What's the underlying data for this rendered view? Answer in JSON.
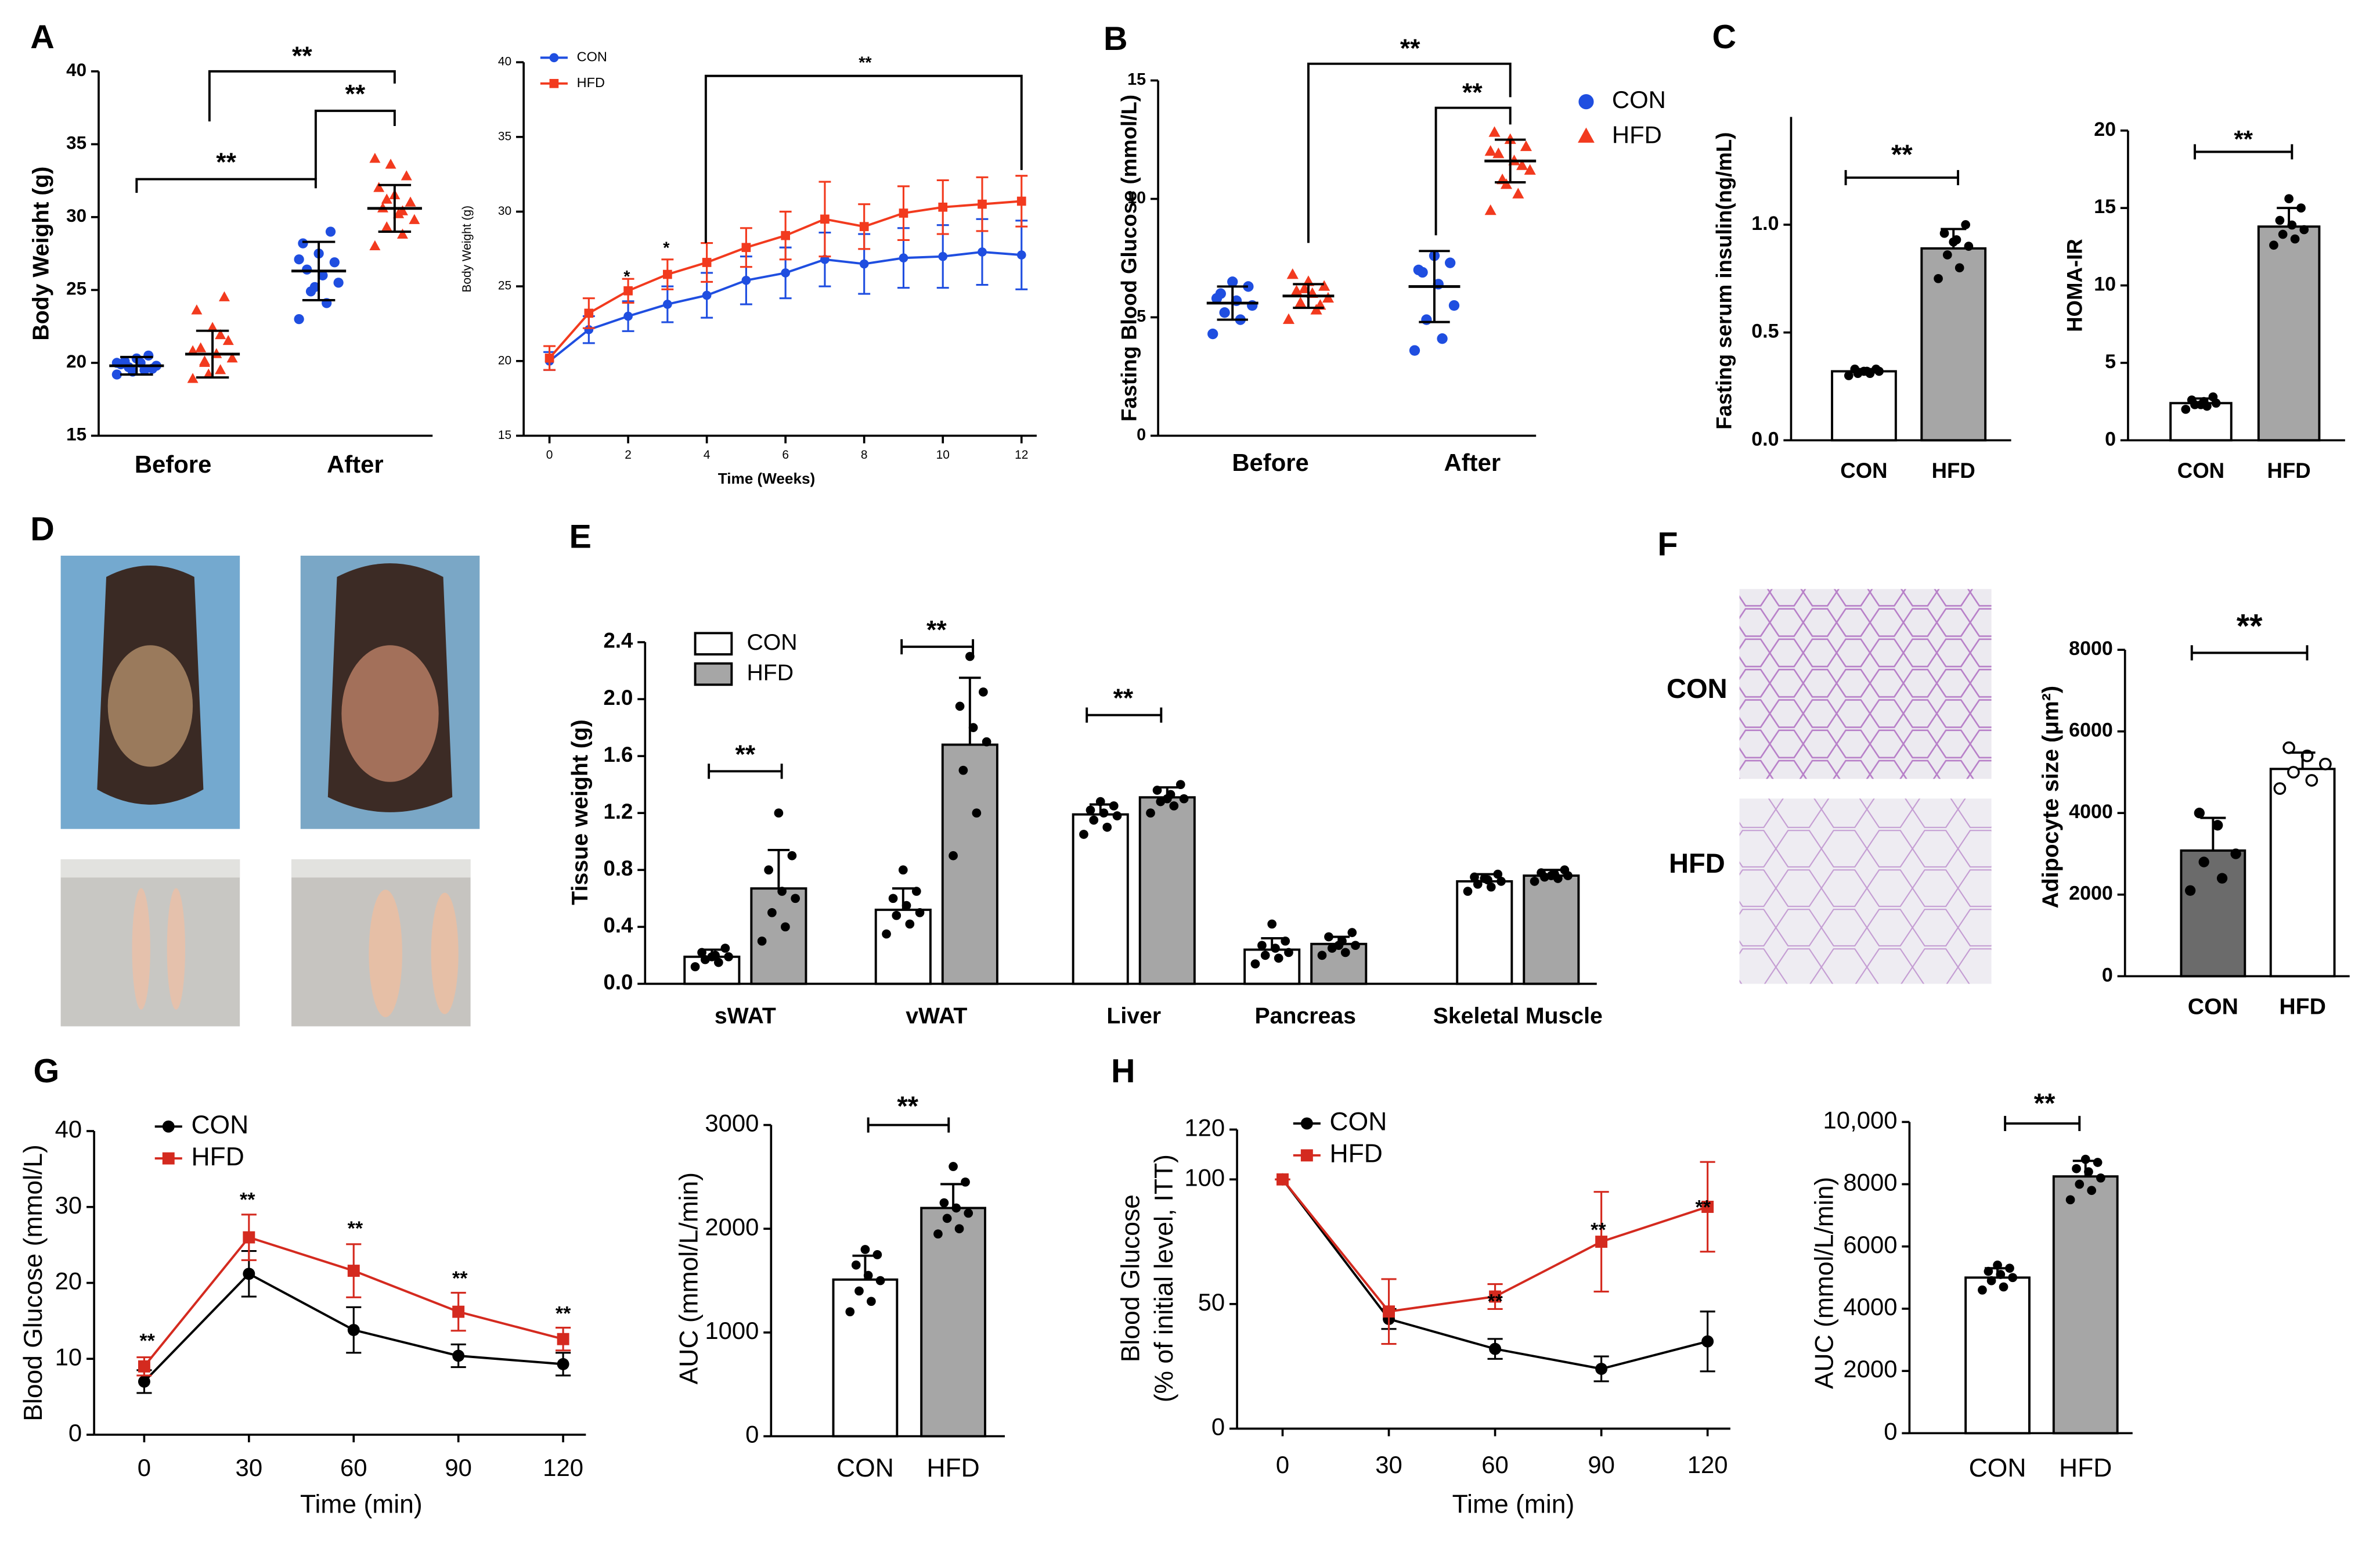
{
  "photo_panel": {
    "label": "D"
  },
  "chart_data": [
    {
      "type": "dot",
      "panel": "A",
      "ylabel": "Body Weight (g)",
      "categories": [
        "Before",
        "After"
      ],
      "ylim": [
        15,
        40
      ],
      "yticks": [
        15,
        20,
        25,
        30,
        35,
        40
      ],
      "series": [
        {
          "color": "#1f4ee0",
          "marker": "circle",
          "values": [
            19.8,
            26.3
          ],
          "errors": [
            0.6,
            2.0
          ],
          "points": [
            [
              19.2,
              19.5,
              19.7,
              19.8,
              20.0,
              20.1,
              19.6,
              20.3,
              19.9,
              20.5,
              19.4,
              20.0
            ],
            [
              23.0,
              24.1,
              24.9,
              25.5,
              26.0,
              26.4,
              26.9,
              27.5,
              28.2,
              29.0,
              25.2,
              27.1
            ]
          ]
        },
        {
          "color": "#f23a1e",
          "marker": "triangle",
          "values": [
            20.6,
            30.6
          ],
          "errors": [
            1.6,
            1.6
          ],
          "points": [
            [
              18.9,
              19.5,
              20.0,
              20.3,
              20.6,
              21.0,
              21.5,
              22.4,
              23.6,
              24.5,
              19.2,
              20.8,
              21.9,
              20.1
            ],
            [
              28.0,
              28.8,
              29.3,
              29.8,
              30.2,
              30.6,
              31.0,
              31.5,
              32.0,
              32.8,
              33.6,
              34.0,
              30.4,
              31.2
            ]
          ]
        }
      ],
      "annotations": [
        "**",
        "**",
        "**"
      ]
    },
    {
      "type": "line",
      "ylabel": "Body Weight (g)",
      "xlabel": "Time (Weeks)",
      "x": [
        0,
        1,
        2,
        3,
        4,
        5,
        6,
        7,
        8,
        9,
        10,
        11,
        12
      ],
      "xlim": [
        0,
        12
      ],
      "xticks": [
        0,
        2,
        4,
        6,
        8,
        10,
        12
      ],
      "ylim": [
        15,
        40
      ],
      "yticks": [
        15,
        20,
        25,
        30,
        35,
        40
      ],
      "legend": "upper left",
      "series": [
        {
          "name": "CON",
          "color": "#1f4ee0",
          "marker": "circle",
          "values": [
            20,
            22.1,
            23,
            23.8,
            24.4,
            25.4,
            25.9,
            26.8,
            26.5,
            26.9,
            27,
            27.3,
            27.1
          ],
          "errors": [
            0.6,
            0.9,
            1,
            1.2,
            1.5,
            1.6,
            1.7,
            1.8,
            2,
            2,
            2.1,
            2.2,
            2.3
          ]
        },
        {
          "name": "HFD",
          "color": "#f23a1e",
          "marker": "square",
          "values": [
            20.2,
            23.2,
            24.7,
            25.8,
            26.6,
            27.6,
            28.4,
            29.5,
            29.0,
            29.9,
            30.3,
            30.5,
            30.7
          ],
          "errors": [
            0.8,
            1,
            0.8,
            1,
            1.3,
            1.3,
            1.6,
            2.5,
            1.5,
            1.8,
            1.8,
            1.8,
            1.7
          ]
        }
      ],
      "annotations": [
        "*",
        "*",
        "**"
      ]
    },
    {
      "type": "dot",
      "panel": "B",
      "ylabel": "Fasting Blood Glucose (mmol/L)",
      "categories": [
        "Before",
        "After"
      ],
      "ylim": [
        0,
        15
      ],
      "yticks": [
        0,
        5,
        10,
        15
      ],
      "legend": "right",
      "series": [
        {
          "name": "CON",
          "color": "#1f4ee0",
          "marker": "circle",
          "values": [
            5.6,
            6.3
          ],
          "errors": [
            0.7,
            1.5
          ],
          "points": [
            [
              4.3,
              4.9,
              5.2,
              5.5,
              5.7,
              6.0,
              6.3,
              6.5,
              5.8
            ],
            [
              3.6,
              4.1,
              4.9,
              5.5,
              6.4,
              6.9,
              7.3,
              7.6,
              7.0
            ]
          ]
        },
        {
          "name": "HFD",
          "color": "#f23a1e",
          "marker": "triangle",
          "values": [
            5.9,
            11.6
          ],
          "errors": [
            0.5,
            0.9
          ],
          "points": [
            [
              4.9,
              5.3,
              5.6,
              5.8,
              6.0,
              6.1,
              6.3,
              6.5,
              6.8,
              5.5,
              6.2
            ],
            [
              9.5,
              10.2,
              10.8,
              11.2,
              11.6,
              11.9,
              12.2,
              12.5,
              12.8,
              11.4,
              10.6,
              12.0
            ]
          ]
        }
      ],
      "annotations": [
        "**",
        "**"
      ]
    },
    {
      "type": "bar",
      "panel": "C",
      "ylabel": "Fasting serum insulin(ng/mL)",
      "categories": [
        "CON",
        "HFD"
      ],
      "values": [
        0.32,
        0.89
      ],
      "errors": [
        0.01,
        0.09
      ],
      "colors": [
        "#ffffff",
        "#a6a6a6"
      ],
      "point_color": "#000000",
      "points": [
        [
          0.3,
          0.31,
          0.31,
          0.32,
          0.32,
          0.33,
          0.33,
          0.32
        ],
        [
          0.75,
          0.8,
          0.86,
          0.9,
          0.93,
          0.96,
          1.0,
          0.92
        ]
      ],
      "ylim": [
        0,
        1.5
      ],
      "yticks": [
        {
          "value": 0,
          "label": "0.0"
        },
        {
          "value": 0.5,
          "label": "0.5"
        },
        {
          "value": 1,
          "label": "1.0"
        }
      ],
      "annotations": [
        "**"
      ]
    },
    {
      "type": "bar",
      "ylabel": "HOMA-IR",
      "categories": [
        "CON",
        "HFD"
      ],
      "values": [
        2.4,
        13.8
      ],
      "errors": [
        0.3,
        1.2
      ],
      "colors": [
        "#ffffff",
        "#a6a6a6"
      ],
      "point_color": "#000000",
      "points": [
        [
          2.0,
          2.2,
          2.3,
          2.4,
          2.5,
          2.6,
          2.8,
          2.3
        ],
        [
          12.6,
          13.0,
          13.3,
          13.6,
          13.9,
          14.2,
          15.0,
          15.6
        ]
      ],
      "ylim": [
        0,
        20
      ],
      "yticks": [
        0,
        5,
        10,
        15,
        20
      ],
      "annotations": [
        "**"
      ]
    },
    {
      "type": "grouped_bar",
      "panel": "E",
      "ylabel": "Tissue weight (g)",
      "categories": [
        "sWAT",
        "vWAT",
        "Liver",
        "Pancreas",
        "Skeletal Muscle"
      ],
      "ylim": [
        0,
        2.4
      ],
      "yticks": [
        {
          "value": 0,
          "label": "0.0"
        },
        {
          "value": 0.4,
          "label": "0.4"
        },
        {
          "value": 0.8,
          "label": "0.8"
        },
        {
          "value": 1.2,
          "label": "1.2"
        },
        {
          "value": 1.6,
          "label": "1.6"
        },
        {
          "value": 2.0,
          "label": "2.0"
        },
        {
          "value": 2.4,
          "label": "2.4"
        }
      ],
      "legend": "upper left",
      "point_color": "#000000",
      "series": [
        {
          "name": "CON",
          "color": "#ffffff",
          "values": [
            0.19,
            0.52,
            1.19,
            0.24,
            0.72
          ],
          "errors": [
            0.05,
            0.15,
            0.07,
            0.08,
            0.05
          ],
          "points": [
            [
              0.12,
              0.15,
              0.17,
              0.19,
              0.2,
              0.22,
              0.25,
              0.19
            ],
            [
              0.35,
              0.42,
              0.48,
              0.5,
              0.55,
              0.6,
              0.65,
              0.8
            ],
            [
              1.05,
              1.1,
              1.15,
              1.18,
              1.2,
              1.22,
              1.25,
              1.28
            ],
            [
              0.14,
              0.18,
              0.2,
              0.22,
              0.25,
              0.27,
              0.3,
              0.42
            ],
            [
              0.65,
              0.68,
              0.7,
              0.72,
              0.73,
              0.75,
              0.77,
              0.74
            ]
          ]
        },
        {
          "name": "HFD",
          "color": "#a6a6a6",
          "values": [
            0.67,
            1.68,
            1.31,
            0.28,
            0.76
          ],
          "errors": [
            0.27,
            0.47,
            0.07,
            0.05,
            0.04
          ],
          "points": [
            [
              0.3,
              0.4,
              0.5,
              0.6,
              0.65,
              0.8,
              0.9,
              1.2
            ],
            [
              0.9,
              1.2,
              1.5,
              1.7,
              1.8,
              1.95,
              2.05,
              2.3
            ],
            [
              1.2,
              1.25,
              1.28,
              1.3,
              1.33,
              1.36,
              1.4,
              1.3
            ],
            [
              0.2,
              0.22,
              0.25,
              0.27,
              0.3,
              0.33,
              0.36,
              0.27
            ],
            [
              0.72,
              0.74,
              0.75,
              0.76,
              0.77,
              0.78,
              0.8,
              0.76
            ]
          ]
        }
      ],
      "annotations": [
        "**",
        "**",
        "**"
      ]
    },
    {
      "type": "bar",
      "panel": "F",
      "image_labels": [
        "CON",
        "HFD"
      ],
      "ylabel": "Adipocyte size (μm²)",
      "categories": [
        "CON",
        "HFD"
      ],
      "values": [
        3080,
        5080
      ],
      "errors": [
        800,
        400
      ],
      "colors": [
        "#6b6b6b",
        "#ffffff"
      ],
      "point_color": "#000000",
      "markers": [
        "circle",
        "open-circle"
      ],
      "points": [
        [
          2100,
          2400,
          2800,
          3000,
          3700,
          4000
        ],
        [
          4600,
          4800,
          5000,
          5200,
          5400,
          5600
        ]
      ],
      "ylim": [
        0,
        8000
      ],
      "yticks": [
        0,
        2000,
        4000,
        6000,
        8000
      ],
      "annotations": [
        "**"
      ]
    },
    {
      "type": "line",
      "panel": "G",
      "ylabel": "Blood Glucose (mmol/L)",
      "xlabel": "Time (min)",
      "x": [
        0,
        30,
        60,
        90,
        120
      ],
      "xlim": [
        0,
        120
      ],
      "xticks": [
        0,
        30,
        60,
        90,
        120
      ],
      "ylim": [
        0,
        40
      ],
      "yticks": [
        0,
        10,
        20,
        30,
        40
      ],
      "legend": "upper left",
      "series": [
        {
          "name": "CON",
          "color": "#000000",
          "marker": "circle",
          "values": [
            7,
            21.2,
            13.8,
            10.4,
            9.3
          ],
          "errors": [
            1.5,
            3,
            3,
            1.5,
            1.5
          ]
        },
        {
          "name": "HFD",
          "color": "#d42a1f",
          "marker": "square",
          "values": [
            9,
            26,
            21.6,
            16.2,
            12.6
          ],
          "errors": [
            1.2,
            3,
            3.5,
            2.5,
            1.5
          ]
        }
      ],
      "annotations": [
        "**",
        "**",
        "**",
        "**",
        "**"
      ]
    },
    {
      "type": "bar",
      "ylabel": "AUC (mmol/L/min)",
      "categories": [
        "CON",
        "HFD"
      ],
      "values": [
        1510,
        2200
      ],
      "errors": [
        230,
        230
      ],
      "colors": [
        "#ffffff",
        "#a6a6a6"
      ],
      "point_color": "#000000",
      "points": [
        [
          1200,
          1300,
          1400,
          1500,
          1550,
          1650,
          1750,
          1800
        ],
        [
          1950,
          2000,
          2100,
          2150,
          2200,
          2250,
          2450,
          2600
        ]
      ],
      "ylim": [
        0,
        3000
      ],
      "yticks": [
        0,
        1000,
        2000,
        3000
      ],
      "annotations": [
        "**"
      ]
    },
    {
      "type": "line",
      "panel": "H",
      "ylabel": [
        "Blood Glucose",
        "(% of initial level, ITT)"
      ],
      "xlabel": "Time (min)",
      "x": [
        0,
        30,
        60,
        90,
        120
      ],
      "xlim": [
        0,
        120
      ],
      "xticks": [
        0,
        30,
        60,
        90,
        120
      ],
      "ylim": [
        0,
        120
      ],
      "yticks": [
        0,
        50,
        100,
        120
      ],
      "legend": "upper left",
      "series": [
        {
          "name": "CON",
          "color": "#000000",
          "marker": "circle",
          "values": [
            100,
            44,
            32,
            24,
            35
          ],
          "errors": [
            0,
            4,
            4,
            5,
            12
          ]
        },
        {
          "name": "HFD",
          "color": "#d42a1f",
          "marker": "square",
          "values": [
            100,
            47,
            53,
            75,
            89
          ],
          "errors": [
            0,
            13,
            5,
            20,
            18
          ]
        }
      ],
      "annotations": [
        "**",
        "**",
        "**"
      ]
    },
    {
      "type": "bar",
      "ylabel": "AUC (mmol/L/min)",
      "categories": [
        "CON",
        "HFD"
      ],
      "values": [
        5000,
        8250
      ],
      "errors": [
        300,
        500
      ],
      "colors": [
        "#ffffff",
        "#a6a6a6"
      ],
      "point_color": "#000000",
      "points": [
        [
          4600,
          4700,
          4900,
          5000,
          5100,
          5200,
          5300,
          5400
        ],
        [
          7500,
          7800,
          8000,
          8200,
          8400,
          8500,
          8700,
          8800
        ]
      ],
      "ylim": [
        0,
        10000
      ],
      "yticks": [
        0,
        2000,
        4000,
        6000,
        8000,
        {
          "value": 10000,
          "label": "10,000"
        }
      ],
      "annotations": [
        "**"
      ]
    }
  ]
}
